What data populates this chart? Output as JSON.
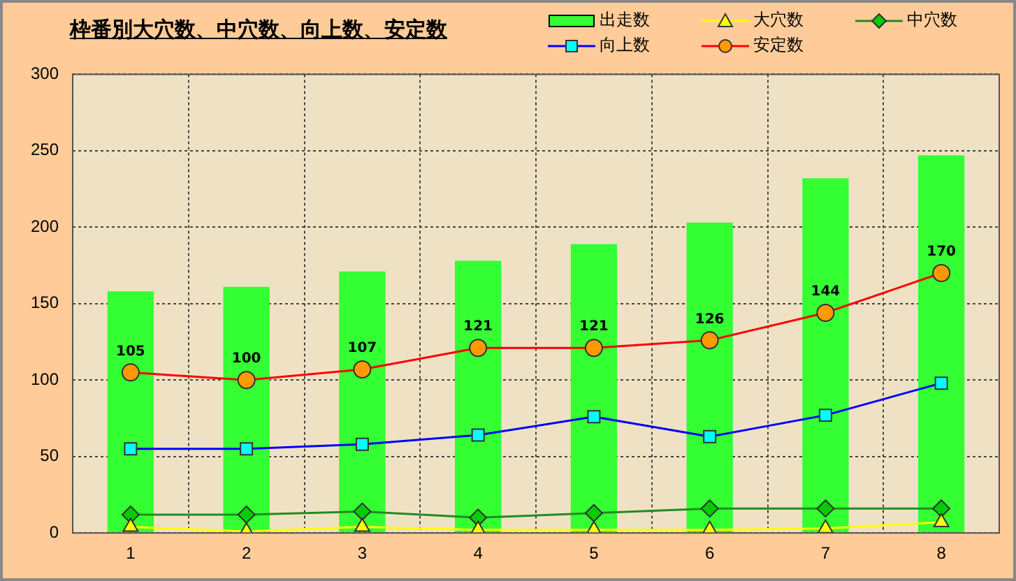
{
  "chart_data": {
    "type": "bar",
    "title": "枠番別大穴数、中穴数、向上数、安定数",
    "categories": [
      "1",
      "2",
      "3",
      "4",
      "5",
      "6",
      "7",
      "8"
    ],
    "series": [
      {
        "name": "出走数",
        "color": "#33ff33",
        "values": [
          158,
          161,
          171,
          178,
          189,
          203,
          232,
          247
        ]
      },
      {
        "name": "大穴数",
        "type": "line",
        "color": "#ffff00",
        "marker": "triangle",
        "values": [
          4,
          1,
          4,
          2,
          2,
          2,
          3,
          7
        ]
      },
      {
        "name": "中穴数",
        "type": "line",
        "color": "#228b22",
        "marker": "diamond",
        "values": [
          12,
          12,
          14,
          10,
          13,
          16,
          16,
          16
        ]
      },
      {
        "name": "向上数",
        "type": "line",
        "color": "#0000ff",
        "marker": "square",
        "values": [
          55,
          55,
          58,
          64,
          76,
          63,
          77,
          98
        ]
      },
      {
        "name": "安定数",
        "type": "line",
        "color": "#ff0000",
        "marker": "circle",
        "values": [
          105,
          100,
          107,
          121,
          121,
          126,
          144,
          170
        ],
        "value_labels": [
          "105",
          "100",
          "107",
          "121",
          "121",
          "126",
          "144",
          "170"
        ]
      }
    ],
    "ylim": [
      0,
      300
    ],
    "yticks": [
      0,
      50,
      100,
      150,
      200,
      250,
      300
    ],
    "grid": true,
    "legend": "top right"
  }
}
